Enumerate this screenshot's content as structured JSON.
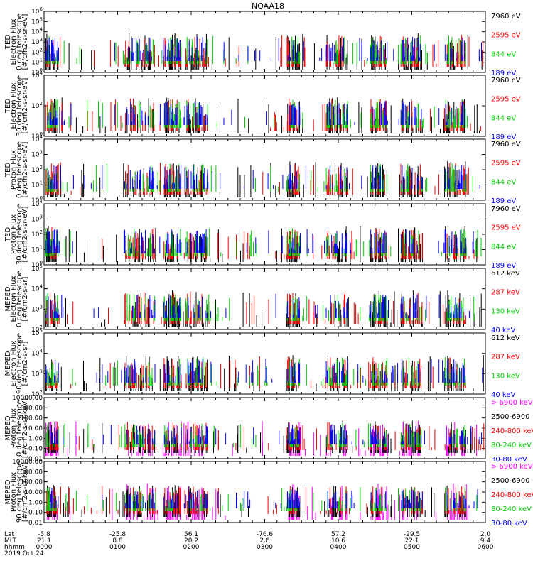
{
  "title": "NOAA18",
  "chart_data": [
    {
      "type": "scatter",
      "ylabel": [
        "TED",
        "Electron Flux",
        "0 deg telescope",
        "[#/cm2-s-sr-eV]"
      ],
      "yticks": [
        "10^0",
        "10^1",
        "10^2",
        "10^3",
        "10^4",
        "10^5",
        "10^6"
      ],
      "ylog": [
        0,
        6
      ],
      "series": [
        {
          "name": "7960 eV",
          "color": "#000000"
        },
        {
          "name": "2595 eV",
          "color": "#ff0000"
        },
        {
          "name": "844 eV",
          "color": "#00d000"
        },
        {
          "name": "189 eV",
          "color": "#0000ff"
        }
      ]
    },
    {
      "type": "scatter",
      "ylabel": [
        "TED",
        "Electron Flux",
        "30 deg telescope",
        "[#/cm2-s-sr-eV]"
      ],
      "yticks": [
        "10^0",
        "10^2",
        "10^4"
      ],
      "ylog": [
        0,
        5
      ],
      "series": [
        {
          "name": "7960 eV",
          "color": "#000000"
        },
        {
          "name": "2595 eV",
          "color": "#ff0000"
        },
        {
          "name": "844 eV",
          "color": "#00d000"
        },
        {
          "name": "189 eV",
          "color": "#0000ff"
        }
      ]
    },
    {
      "type": "scatter",
      "ylabel": [
        "TED",
        "Proton Flux",
        "0 deg telescope",
        "[#/cm2-s-sr-eV]"
      ],
      "yticks": [
        "10^0",
        "10^1",
        "10^2",
        "10^3",
        "10^4"
      ],
      "ylog": [
        0,
        4
      ],
      "series": [
        {
          "name": "7960 eV",
          "color": "#000000"
        },
        {
          "name": "2595 eV",
          "color": "#ff0000"
        },
        {
          "name": "844 eV",
          "color": "#00d000"
        },
        {
          "name": "189 eV",
          "color": "#0000ff"
        }
      ]
    },
    {
      "type": "scatter",
      "ylabel": [
        "TED",
        "Proton Flux",
        "30 deg telescope",
        "[#/cm2-s-sr-eV]"
      ],
      "yticks": [
        "10^0",
        "10^1",
        "10^2",
        "10^3",
        "10^4"
      ],
      "ylog": [
        0,
        4
      ],
      "series": [
        {
          "name": "7960 eV",
          "color": "#000000"
        },
        {
          "name": "2595 eV",
          "color": "#ff0000"
        },
        {
          "name": "844 eV",
          "color": "#00d000"
        },
        {
          "name": "189 eV",
          "color": "#0000ff"
        }
      ]
    },
    {
      "type": "scatter",
      "ylabel": [
        "MEPED",
        "Electron Flux",
        "0 deg telescope",
        "[#/cm2-s-sr]"
      ],
      "yticks": [
        "10^2",
        "10^3",
        "10^4",
        "10^5"
      ],
      "ylog": [
        2,
        5
      ],
      "series": [
        {
          "name": "612 keV",
          "color": "#000000"
        },
        {
          "name": "287 keV",
          "color": "#ff0000"
        },
        {
          "name": "130 keV",
          "color": "#00d000"
        },
        {
          "name": "40 keV",
          "color": "#0000ff"
        }
      ]
    },
    {
      "type": "scatter",
      "ylabel": [
        "MEPED",
        "Electron Flux",
        "90 deg telescope",
        "[#/cm2-s-sr]"
      ],
      "yticks": [
        "10^2",
        "10^3",
        "10^4",
        "10^5"
      ],
      "ylog": [
        2,
        5
      ],
      "series": [
        {
          "name": "612 keV",
          "color": "#000000"
        },
        {
          "name": "287 keV",
          "color": "#ff0000"
        },
        {
          "name": "130 keV",
          "color": "#00d000"
        },
        {
          "name": "40 keV",
          "color": "#0000ff"
        }
      ]
    },
    {
      "type": "scatter",
      "ylabel": [
        "MEPED",
        "Proton Flux",
        "0 deg telescope",
        "[#/cm2-s-sr-keV]"
      ],
      "yticks": [
        "0.01",
        "0.10",
        "1.00",
        "10.00",
        "100.00",
        "1000.00",
        "10000.00"
      ],
      "ylog": [
        -2,
        4
      ],
      "series": [
        {
          "name": "> 6900 keV",
          "color": "#ff00ff"
        },
        {
          "name": "2500-6900",
          "color": "#000000"
        },
        {
          "name": "240-800 keV",
          "color": "#ff0000"
        },
        {
          "name": "80-240 keV",
          "color": "#00d000"
        },
        {
          "name": "30-80 keV",
          "color": "#0000ff"
        }
      ]
    },
    {
      "type": "scatter",
      "ylabel": [
        "MEPED",
        "Proton Flux",
        "90 deg telescope",
        "[#/cm2-s-sr-keV]"
      ],
      "yticks": [
        "0.01",
        "0.10",
        "1.00",
        "10.00",
        "100.00",
        "1000.00",
        "10000.00"
      ],
      "ylog": [
        -2,
        4
      ],
      "series": [
        {
          "name": "> 6900 keV",
          "color": "#ff00ff"
        },
        {
          "name": "2500-6900",
          "color": "#000000"
        },
        {
          "name": "240-800 keV",
          "color": "#ff0000"
        },
        {
          "name": "80-240 keV",
          "color": "#00d000"
        },
        {
          "name": "30-80 keV",
          "color": "#0000ff"
        }
      ]
    }
  ],
  "x_axis": {
    "row_labels": [
      "Lat",
      "MLT",
      "hhmm",
      "2019 Oct 24"
    ],
    "ticks": [
      {
        "lat": "-5.8",
        "mlt": "21.1",
        "hhmm": "0000"
      },
      {
        "lat": "-25.8",
        "mlt": "8.8",
        "hhmm": "0100"
      },
      {
        "lat": "56.1",
        "mlt": "20.2",
        "hhmm": "0200"
      },
      {
        "lat": "-76.6",
        "mlt": "2.6",
        "hhmm": "0300"
      },
      {
        "lat": "57.2",
        "mlt": "10.6",
        "hhmm": "0400"
      },
      {
        "lat": "-29.5",
        "mlt": "22.1",
        "hhmm": "0500"
      },
      {
        "lat": "2.0",
        "mlt": "9.4",
        "hhmm": "0600"
      }
    ]
  }
}
